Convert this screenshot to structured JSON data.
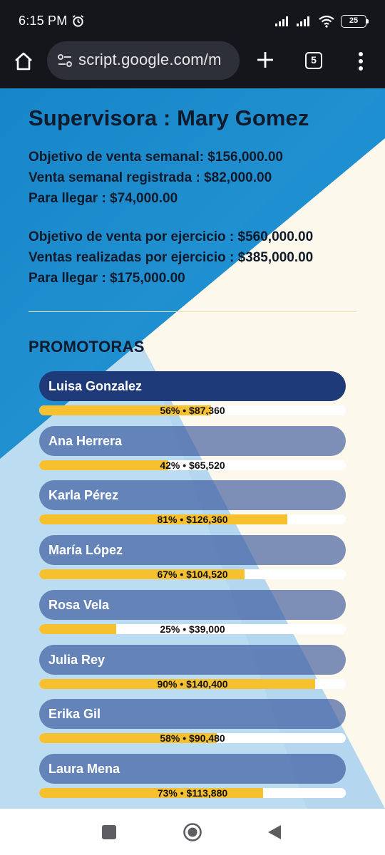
{
  "status_bar": {
    "time": "6:15 PM",
    "battery": "25"
  },
  "browser": {
    "url": "script.google.com/m",
    "tab_count": "5"
  },
  "page": {
    "supervisor_title": "Supervisora : Mary Gomez",
    "weekly": {
      "goal": "Objetivo de venta semanal: $156,000.00",
      "registered": "Venta semanal registrada : $82,000.00",
      "remaining": "Para llegar : $74,000.00"
    },
    "fiscal": {
      "goal": "Objetivo de venta por ejercicio : $560,000.00",
      "realized": "Ventas realizadas por ejercicio : $385,000.00",
      "remaining": "Para llegar : $175,000.00"
    },
    "section_title": "PROMOTORAS",
    "promoters": [
      {
        "name": "Luisa Gonzalez",
        "percent": 56,
        "label": "56% • $87,360",
        "active": true
      },
      {
        "name": "Ana Herrera",
        "percent": 42,
        "label": "42% • $65,520",
        "active": false
      },
      {
        "name": "Karla Pérez",
        "percent": 81,
        "label": "81% • $126,360",
        "active": false
      },
      {
        "name": "María López",
        "percent": 67,
        "label": "67% • $104,520",
        "active": false
      },
      {
        "name": "Rosa Vela",
        "percent": 25,
        "label": "25% • $39,000",
        "active": false
      },
      {
        "name": "Julia Rey",
        "percent": 90,
        "label": "90% • $140,400",
        "active": false
      },
      {
        "name": "Erika Gil",
        "percent": 58,
        "label": "58% • $90,480",
        "active": false
      },
      {
        "name": "Laura Mena",
        "percent": 73,
        "label": "73% • $113,880",
        "active": false
      }
    ]
  },
  "colors": {
    "accent_yellow": "#f7c02e",
    "active_pill": "#1f3a78",
    "bg_blue": "#1a86cc",
    "bg_cream": "#fcf8ec",
    "bg_light_blue": "#bfdcf0"
  }
}
